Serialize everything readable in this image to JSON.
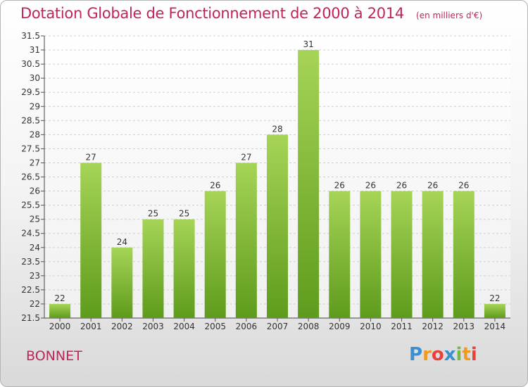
{
  "title": "Dotation Globale de Fonctionnement de 2000 à 2014",
  "unit": "(en milliers d'€)",
  "commune": "BONNET",
  "logo": {
    "letters": [
      "P",
      "r",
      "o",
      "x",
      "i",
      "t",
      "i"
    ],
    "colors": [
      "#3b8fd1",
      "#f29a1f",
      "#e8403a",
      "#3b8fd1",
      "#7ab648",
      "#f29a1f",
      "#e8403a"
    ]
  },
  "colors": {
    "accent": "#c0245a",
    "bar_top": "#a6d457",
    "bar_bottom": "#5e9b1c",
    "grid": "#d0d0d0"
  },
  "chart_data": {
    "type": "bar",
    "categories": [
      "2000",
      "2001",
      "2002",
      "2003",
      "2004",
      "2005",
      "2006",
      "2007",
      "2008",
      "2009",
      "2010",
      "2011",
      "2012",
      "2013",
      "2014"
    ],
    "values": [
      22,
      27,
      24,
      25,
      25,
      26,
      27,
      28,
      31,
      26,
      26,
      26,
      26,
      26,
      22
    ],
    "ylim": [
      21.5,
      31.5
    ],
    "yticks": [
      "21.5",
      "22",
      "22.5",
      "23",
      "23.5",
      "24",
      "24.5",
      "25",
      "25.5",
      "26",
      "26.5",
      "27",
      "27.5",
      "28",
      "28.5",
      "29",
      "29.5",
      "30",
      "30.5",
      "31",
      "31.5"
    ],
    "grid": true,
    "legend": "none"
  }
}
